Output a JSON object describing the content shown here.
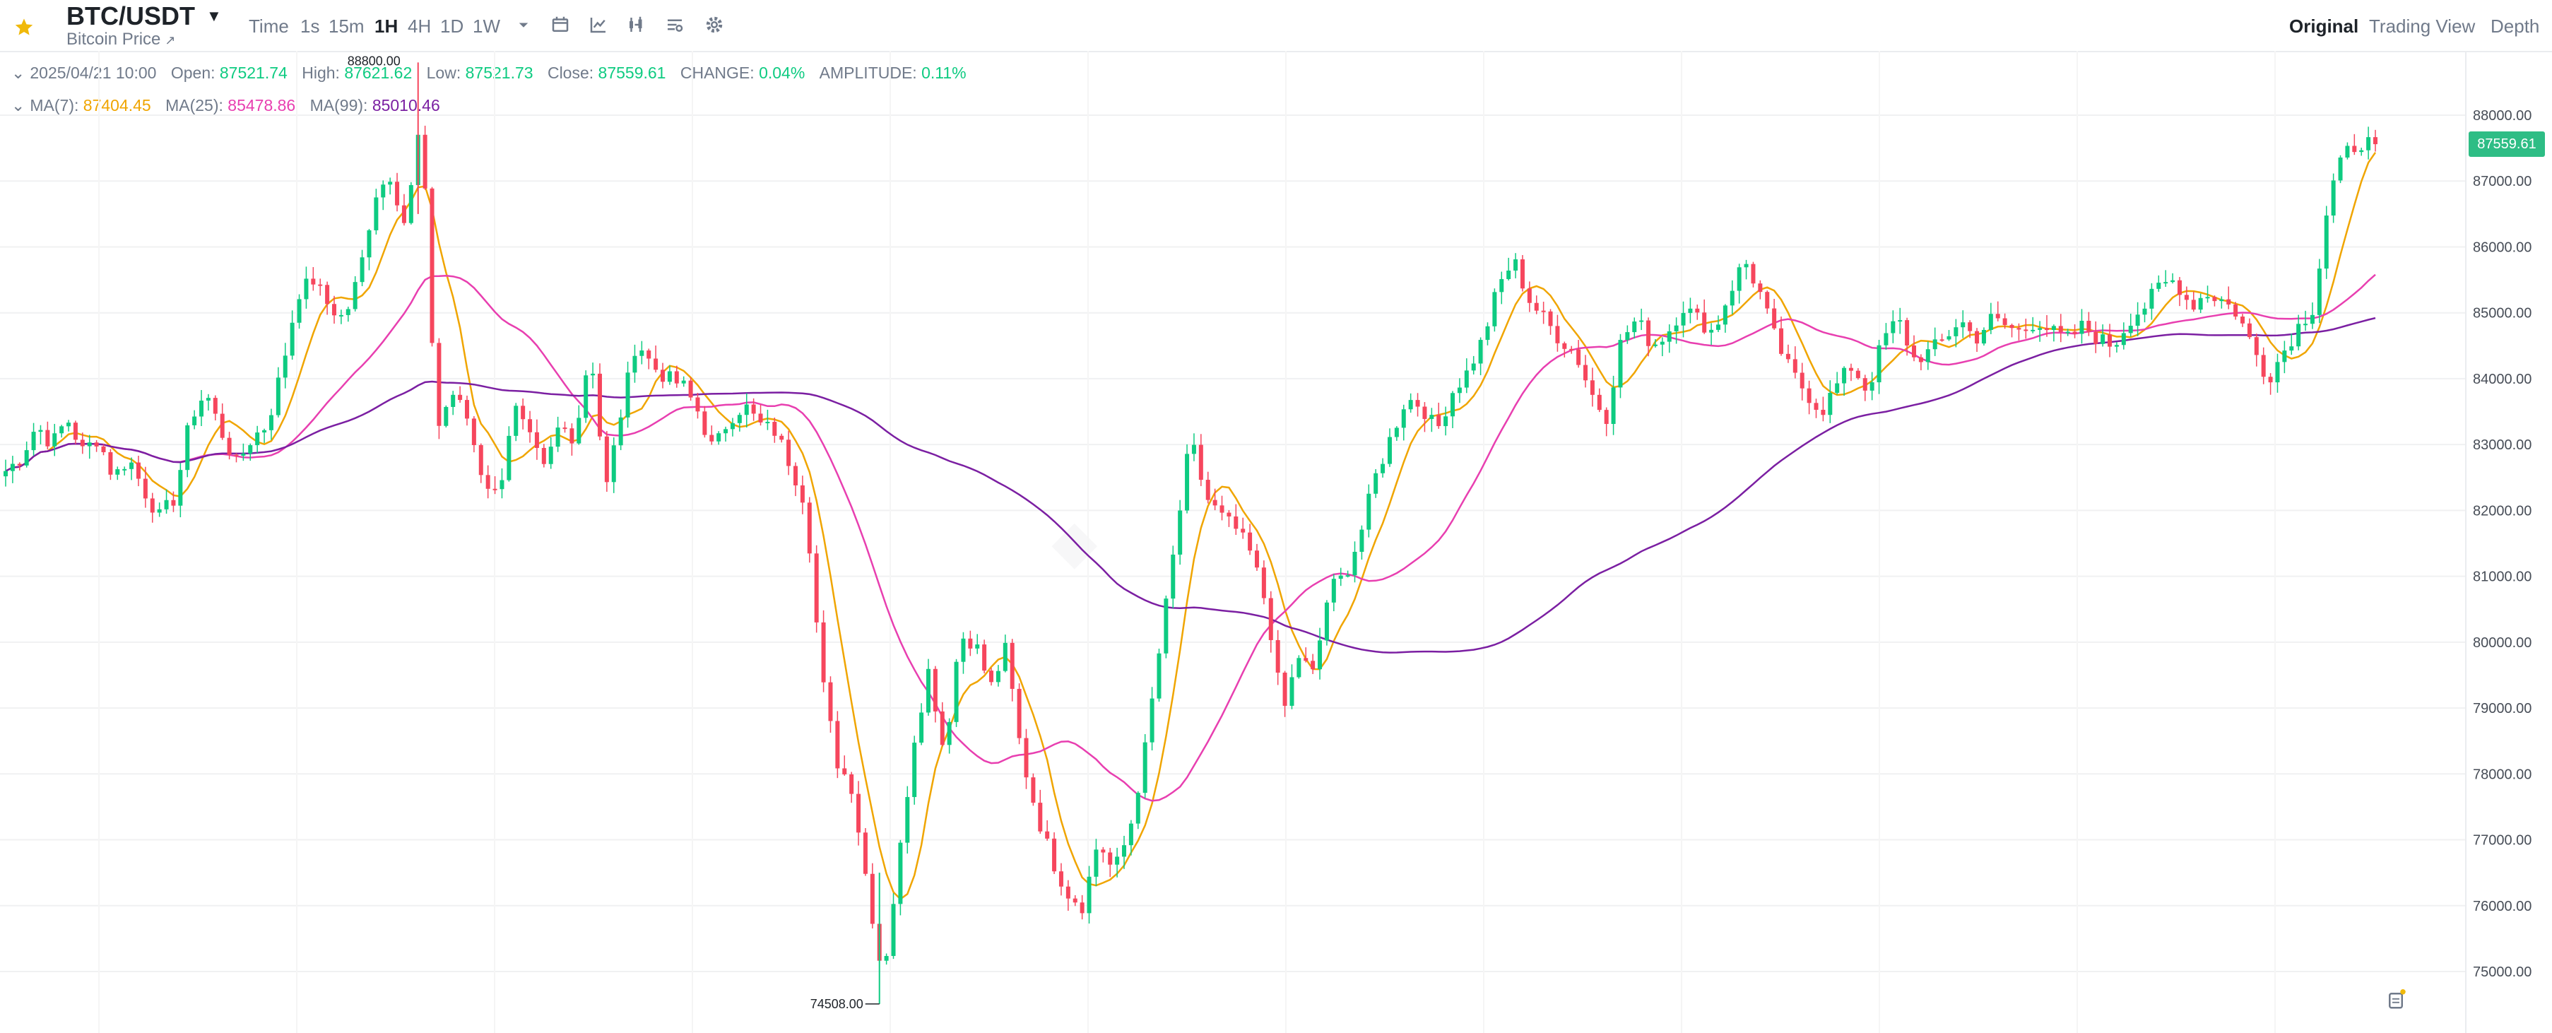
{
  "header": {
    "pair": "BTC/USDT",
    "subtitle": "Bitcoin Price",
    "timeframes": [
      "Time",
      "1s",
      "15m",
      "1H",
      "4H",
      "1D",
      "1W"
    ],
    "active_timeframe": "1H",
    "views": [
      "Original",
      "Trading View",
      "Depth"
    ],
    "active_view": "Original",
    "icons": [
      "star-icon",
      "caret-down-icon",
      "external-link-icon",
      "more-timeframes-icon",
      "calendar-icon",
      "indicator-icon",
      "candle-type-icon",
      "layout-icon",
      "settings-icon"
    ]
  },
  "ohlc": {
    "date": "2025/04/21 10:00",
    "open_label": "Open:",
    "open": "87521.74",
    "high_label": "High:",
    "high": "87621.62",
    "low_label": "Low:",
    "low": "87521.73",
    "close_label": "Close:",
    "close": "87559.61",
    "change_label": "CHANGE:",
    "change": "0.04%",
    "amplitude_label": "AMPLITUDE:",
    "amplitude": "0.11%"
  },
  "ma": {
    "ma7_label": "MA(7):",
    "ma7": "87404.45",
    "ma25_label": "MA(25):",
    "ma25": "85478.86",
    "ma99_label": "MA(99):",
    "ma99": "85010.46"
  },
  "colors": {
    "up": "#0ecb81",
    "down": "#f6465d",
    "ma7": "#f0a500",
    "ma25": "#e83fb0",
    "ma99": "#7b1fa2",
    "price_tag": "#2ebd85"
  },
  "chart_data": {
    "type": "candlestick",
    "ylim": [
      74500,
      88500
    ],
    "yticks": [
      75000,
      76000,
      77000,
      78000,
      79000,
      80000,
      81000,
      82000,
      83000,
      84000,
      85000,
      86000,
      87000,
      88000
    ],
    "ytick_labels": [
      "75000.00",
      "76000.00",
      "77000.00",
      "78000.00",
      "79000.00",
      "80000.00",
      "81000.00",
      "82000.00",
      "83000.00",
      "84000.00",
      "85000.00",
      "86000.00",
      "87000.00",
      "88000.00"
    ],
    "last_price": "87559.61",
    "last_price_value": 87559.61,
    "max_label": "88800.00",
    "max_value": 88800,
    "min_label": "74508.00",
    "min_value": 74508,
    "grid": true,
    "close_path": [
      82600,
      82800,
      83300,
      83000,
      83400,
      82900,
      83100,
      82500,
      82800,
      82300,
      81900,
      82200,
      83400,
      83800,
      83200,
      82700,
      83100,
      83300,
      84200,
      85300,
      85500,
      85100,
      84900,
      85600,
      86800,
      87100,
      86300,
      88000,
      83200,
      83800,
      83400,
      82500,
      82200,
      83600,
      83100,
      82600,
      83300,
      83100,
      84500,
      82300,
      83500,
      84600,
      84200,
      84000,
      83900,
      83500,
      82900,
      83400,
      83600,
      83300,
      83200,
      82700,
      82100,
      79500,
      78200,
      77800,
      76300,
      74900,
      76600,
      78500,
      79600,
      78300,
      80100,
      80000,
      79300,
      79900,
      78300,
      77400,
      76700,
      76200,
      76000,
      77000,
      76500,
      77100,
      78300,
      79900,
      81500,
      83100,
      82200,
      81900,
      81700,
      81300,
      80500,
      78900,
      79800,
      79500,
      80800,
      81000,
      81600,
      82500,
      83100,
      83700,
      83600,
      83200,
      83800,
      84100,
      84600,
      85400,
      85800,
      85200,
      84900,
      84600,
      84400,
      83800,
      83400,
      84600,
      84900,
      84500,
      84700,
      85100,
      84900,
      84700,
      85300,
      85800,
      85300,
      84600,
      84100,
      83800,
      83500,
      83900,
      84200,
      83800,
      84600,
      84900,
      84300,
      84400,
      84600,
      84900,
      84600,
      84900,
      84800,
      84700,
      84900,
      84700,
      84600,
      84800,
      84600,
      84500,
      84900,
      85100,
      85400,
      85500,
      85100,
      85300,
      85200,
      85000,
      84500,
      84000,
      84400,
      84800,
      85100,
      86800,
      87400,
      87600,
      87559
    ]
  }
}
